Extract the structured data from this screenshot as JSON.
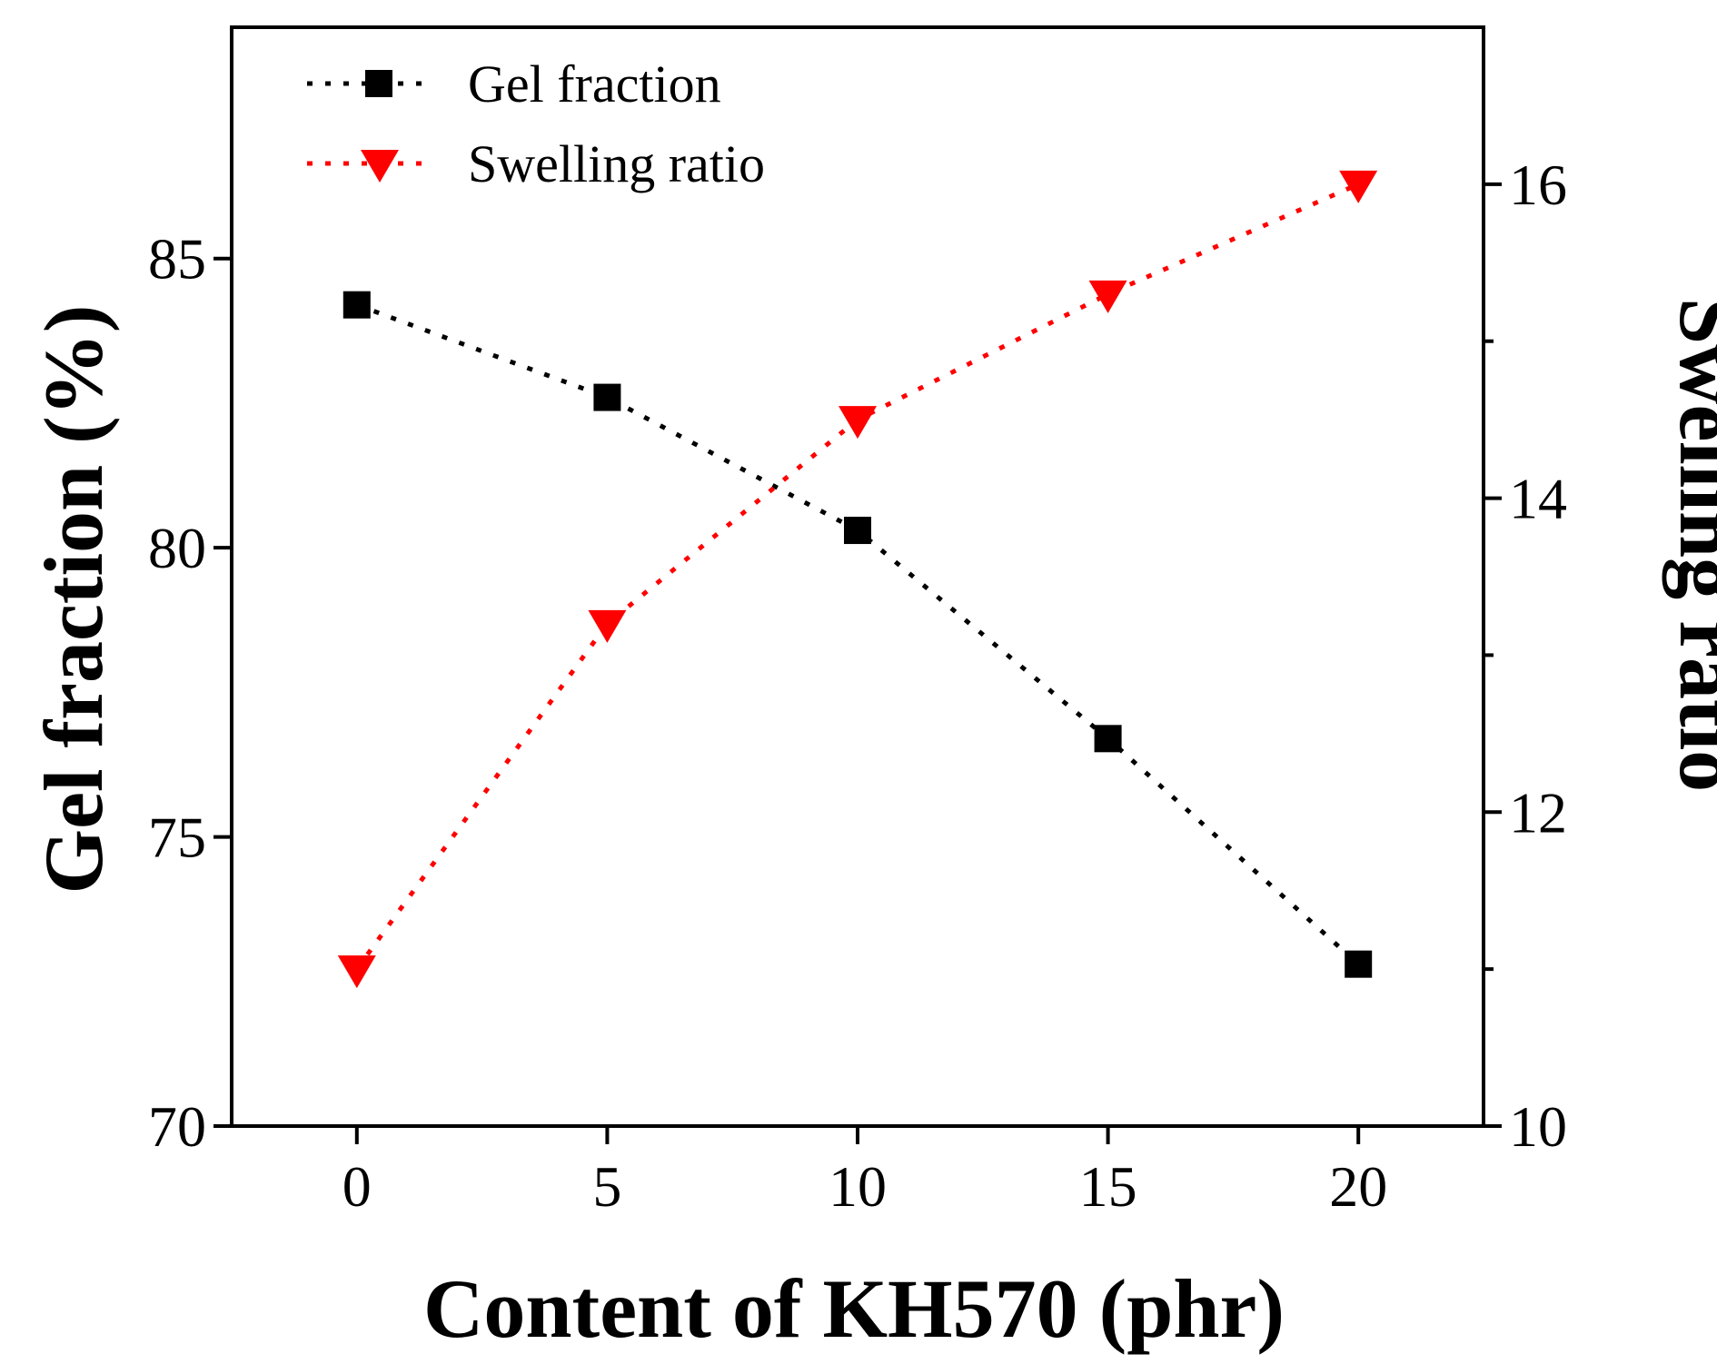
{
  "chart_data": {
    "type": "line",
    "xlabel": "Content of KH570 (phr)",
    "x": [
      0,
      5,
      10,
      15,
      20
    ],
    "xlim": [
      -2.5,
      22.5
    ],
    "xticks": [
      0,
      5,
      10,
      15,
      20
    ],
    "y_left": {
      "label": "Gel fraction (%)",
      "lim": [
        70,
        89
      ],
      "ticks": [
        70,
        75,
        80,
        85
      ]
    },
    "y_right": {
      "label": "Swelling ratio",
      "lim": [
        10,
        17
      ],
      "major_ticks": [
        10,
        12,
        14,
        16
      ],
      "minor_ticks": [
        11,
        13,
        15
      ]
    },
    "series": [
      {
        "name": "Gel fraction",
        "axis": "left",
        "marker": "square",
        "color": "#000000",
        "line_style": "dotted",
        "values": [
          84.2,
          82.6,
          80.3,
          76.7,
          72.8
        ]
      },
      {
        "name": "Swelling ratio",
        "axis": "right",
        "marker": "triangle-down",
        "color": "#ff0000",
        "line_style": "dotted",
        "values": [
          11.0,
          13.2,
          14.5,
          15.3,
          16.0
        ]
      }
    ],
    "legend_position": "top-left",
    "grid": false
  }
}
